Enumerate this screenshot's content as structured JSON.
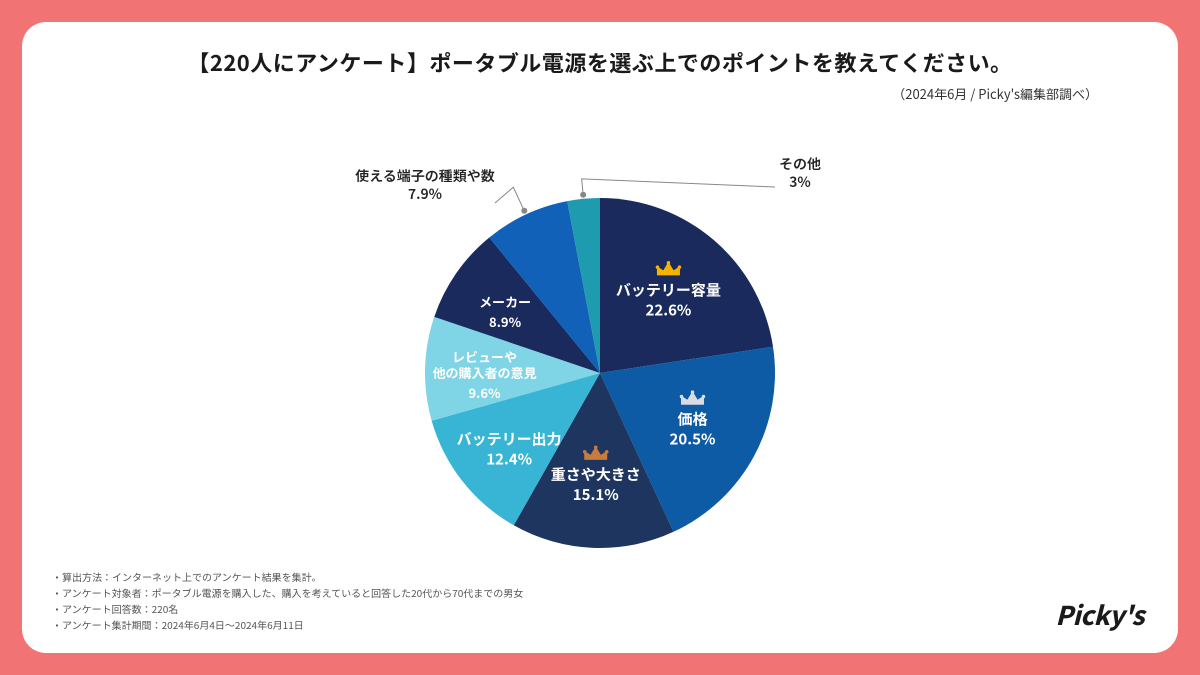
{
  "title": "【220人にアンケート】ポータブル電源を選ぶ上でのポイントを教えてください。",
  "subtitle": "（2024年6月 / Picky's編集部調べ）",
  "brand": "Picky's",
  "background_color": "#f27373",
  "card_bg": "#ffffff",
  "chart": {
    "type": "pie",
    "radius": 175,
    "start_angle_deg": 0,
    "slices": [
      {
        "label": "バッテリー容量",
        "pct": 22.6,
        "color": "#1a2a5c",
        "text_inside": true,
        "crown": "gold",
        "crown_color": "#f5b301"
      },
      {
        "label": "価格",
        "pct": 20.5,
        "color": "#0d5aa5",
        "text_inside": true,
        "crown": "silver",
        "crown_color": "#d9dde2"
      },
      {
        "label": "重さや大きさ",
        "pct": 15.1,
        "color": "#1e365f",
        "text_inside": true,
        "crown": "bronze",
        "crown_color": "#c77b3d"
      },
      {
        "label": "バッテリー出力",
        "pct": 12.4,
        "color": "#38b5d4",
        "text_inside": true
      },
      {
        "label": "レビューや\n他の購入者の意見",
        "pct": 9.6,
        "color": "#7fd4e6",
        "text_inside": true
      },
      {
        "label": "メーカー",
        "pct": 8.9,
        "color": "#1a2a5c",
        "text_inside": true
      },
      {
        "label": "使える端子の種類や数",
        "pct": 7.9,
        "color": "#1161b8",
        "text_inside": false,
        "ext_side": "left"
      },
      {
        "label": "その他",
        "pct": 3.0,
        "color": "#1f9bb0",
        "text_inside": false,
        "ext_side": "right"
      }
    ],
    "label_fontsize": 15,
    "ext_label_fontsize": 14,
    "leader_color": "#888888"
  },
  "notes": [
    "・算出方法：インターネット上でのアンケート結果を集計。",
    "・アンケート対象者：ポータブル電源を購入した、購入を考えていると回答した20代から70代までの男女",
    "・アンケート回答数：220名",
    "・アンケート集計期間：2024年6月4日〜2024年6月11日"
  ]
}
